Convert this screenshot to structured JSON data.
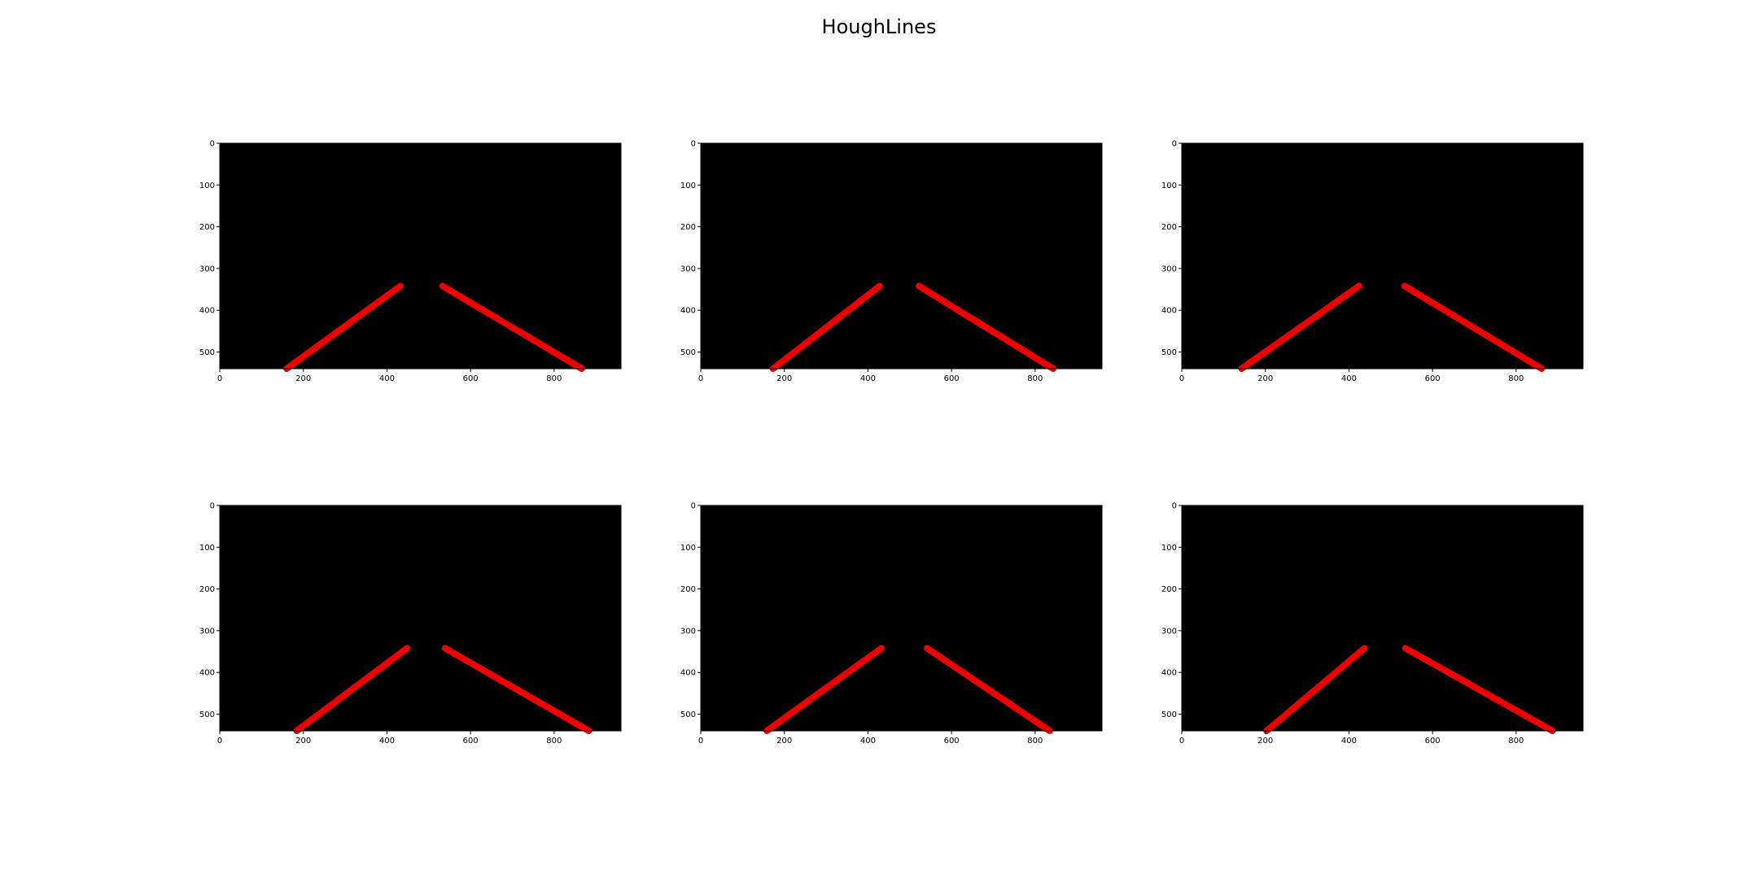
{
  "figure": {
    "title": "HoughLines"
  },
  "colors": {
    "image_background": "#000000",
    "line_color": "#ee0000",
    "axis_color": "#000000",
    "page_background": "#ffffff"
  },
  "chart_data": [
    {
      "type": "image",
      "title": "",
      "xlim": [
        0,
        960
      ],
      "ylim": [
        540,
        0
      ],
      "xticks": [
        0,
        200,
        400,
        600,
        800
      ],
      "yticks": [
        0,
        100,
        200,
        300,
        400,
        500
      ],
      "segments": [
        {
          "x1": 160,
          "y1": 540,
          "x2": 432,
          "y2": 342
        },
        {
          "x1": 533,
          "y1": 342,
          "x2": 866,
          "y2": 540
        }
      ]
    },
    {
      "type": "image",
      "title": "",
      "xlim": [
        0,
        960
      ],
      "ylim": [
        540,
        0
      ],
      "xticks": [
        0,
        200,
        400,
        600,
        800
      ],
      "yticks": [
        0,
        100,
        200,
        300,
        400,
        500
      ],
      "segments": [
        {
          "x1": 173,
          "y1": 540,
          "x2": 428,
          "y2": 342
        },
        {
          "x1": 522,
          "y1": 342,
          "x2": 843,
          "y2": 540
        }
      ]
    },
    {
      "type": "image",
      "title": "",
      "xlim": [
        0,
        960
      ],
      "ylim": [
        540,
        0
      ],
      "xticks": [
        0,
        200,
        400,
        600,
        800
      ],
      "yticks": [
        0,
        100,
        200,
        300,
        400,
        500
      ],
      "segments": [
        {
          "x1": 143,
          "y1": 540,
          "x2": 424,
          "y2": 342
        },
        {
          "x1": 533,
          "y1": 342,
          "x2": 861,
          "y2": 540
        }
      ]
    },
    {
      "type": "image",
      "title": "",
      "xlim": [
        0,
        960
      ],
      "ylim": [
        540,
        0
      ],
      "xticks": [
        0,
        200,
        400,
        600,
        800
      ],
      "yticks": [
        0,
        100,
        200,
        300,
        400,
        500
      ],
      "segments": [
        {
          "x1": 184,
          "y1": 540,
          "x2": 448,
          "y2": 342
        },
        {
          "x1": 539,
          "y1": 342,
          "x2": 883,
          "y2": 540
        }
      ]
    },
    {
      "type": "image",
      "title": "",
      "xlim": [
        0,
        960
      ],
      "ylim": [
        540,
        0
      ],
      "xticks": [
        0,
        200,
        400,
        600,
        800
      ],
      "yticks": [
        0,
        100,
        200,
        300,
        400,
        500
      ],
      "segments": [
        {
          "x1": 158,
          "y1": 540,
          "x2": 432,
          "y2": 342
        },
        {
          "x1": 541,
          "y1": 342,
          "x2": 835,
          "y2": 540
        }
      ]
    },
    {
      "type": "image",
      "title": "",
      "xlim": [
        0,
        960
      ],
      "ylim": [
        540,
        0
      ],
      "xticks": [
        0,
        200,
        400,
        600,
        800
      ],
      "yticks": [
        0,
        100,
        200,
        300,
        400,
        500
      ],
      "segments": [
        {
          "x1": 203,
          "y1": 540,
          "x2": 437,
          "y2": 342
        },
        {
          "x1": 535,
          "y1": 342,
          "x2": 887,
          "y2": 540
        }
      ]
    }
  ]
}
